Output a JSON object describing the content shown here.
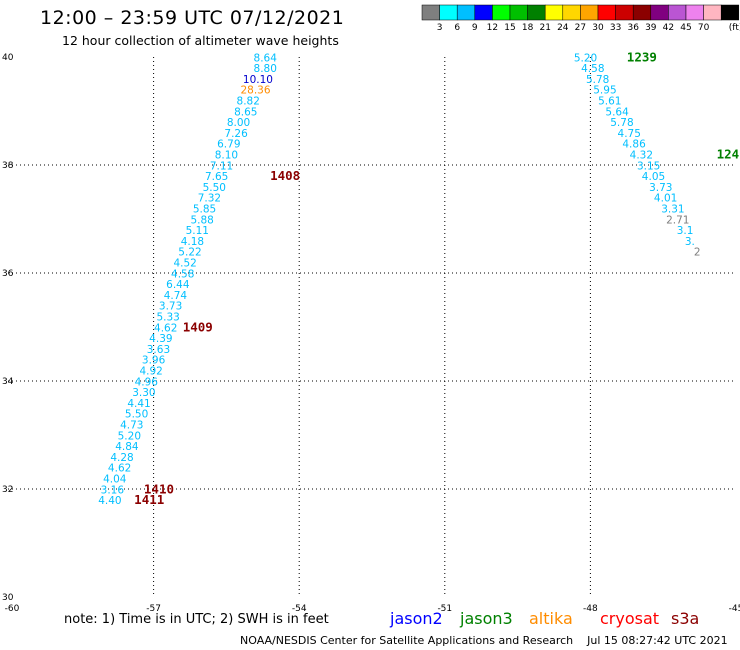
{
  "title": "12:00 – 23:59 UTC 07/12/2021",
  "subtitle": "12 hour collection of altimeter wave heights",
  "note": "note: 1) Time is in UTC; 2) SWH is in feet",
  "credit": "NOAA/NESDIS Center for Satellite Applications and Research",
  "timestamp": "Jul 15 08:27:42 UTC 2021",
  "satellites": [
    {
      "name": "jason2",
      "color": "#0000ff"
    },
    {
      "name": "jason3",
      "color": "#008000"
    },
    {
      "name": "altika",
      "color": "#ff8c00"
    },
    {
      "name": "cryosat",
      "color": "#ff0000"
    },
    {
      "name": "s3a",
      "color": "#8b0000"
    }
  ],
  "chart_data": {
    "type": "scatter",
    "xlim": [
      -60,
      -45
    ],
    "ylim": [
      30,
      40
    ],
    "x_ticks": [
      -60,
      -57,
      -54,
      -51,
      -48,
      -45
    ],
    "x_tick_labels": [
      "-60",
      "-57",
      "-54",
      "-51",
      "-48",
      "-45"
    ],
    "y_ticks": [
      30,
      32,
      34,
      36,
      38,
      40
    ],
    "y_tick_labels": [
      "30",
      "32",
      "34",
      "36",
      "38",
      "40"
    ],
    "grid": true,
    "colorbar": {
      "unit": "(ft)",
      "labels": [
        "3",
        "6",
        "9",
        "12",
        "15",
        "18",
        "21",
        "24",
        "27",
        "30",
        "33",
        "36",
        "39",
        "42",
        "45",
        "70"
      ],
      "colors": [
        "#7f7f7f",
        "#00ffff",
        "#00bfff",
        "#0000ff",
        "#00ff00",
        "#00c000",
        "#008000",
        "#ffff00",
        "#ffd700",
        "#ffa500",
        "#ff0000",
        "#cc0000",
        "#8b0000",
        "#800080",
        "#ba55d3",
        "#ee82ee",
        "#ffb6c1",
        "#000000"
      ]
    },
    "track_color_cyan": "#00bfff",
    "series": [
      {
        "name": "track-1",
        "points": [
          {
            "lon": -54.7,
            "lat": 39.92,
            "swh": "8.64",
            "color": "#00bfff"
          },
          {
            "lon": -54.7,
            "lat": 39.72,
            "swh": "8.80",
            "color": "#00bfff"
          },
          {
            "lon": -54.85,
            "lat": 39.52,
            "swh": "10.10",
            "color": "#0000cd"
          },
          {
            "lon": -54.9,
            "lat": 39.32,
            "swh": "28.36",
            "color": "#ff8c00"
          },
          {
            "lon": -55.05,
            "lat": 39.12,
            "swh": "8.82",
            "color": "#00bfff"
          },
          {
            "lon": -55.1,
            "lat": 38.92,
            "swh": "8.65",
            "color": "#00bfff"
          },
          {
            "lon": -55.25,
            "lat": 38.72,
            "swh": "8.00",
            "color": "#00bfff"
          },
          {
            "lon": -55.3,
            "lat": 38.52,
            "swh": "7.26",
            "color": "#00bfff"
          },
          {
            "lon": -55.45,
            "lat": 38.32,
            "swh": "6.79",
            "color": "#00bfff"
          },
          {
            "lon": -55.5,
            "lat": 38.12,
            "swh": "8.10",
            "color": "#00bfff"
          },
          {
            "lon": -55.6,
            "lat": 37.92,
            "swh": "7.11",
            "color": "#00bfff"
          },
          {
            "lon": -55.7,
            "lat": 37.72,
            "swh": "7.65",
            "color": "#00bfff"
          },
          {
            "lon": -55.75,
            "lat": 37.52,
            "swh": "5.50",
            "color": "#00bfff"
          },
          {
            "lon": -55.85,
            "lat": 37.32,
            "swh": "7.32",
            "color": "#00bfff"
          },
          {
            "lon": -55.95,
            "lat": 37.12,
            "swh": "5.85",
            "color": "#00bfff"
          },
          {
            "lon": -56.0,
            "lat": 36.92,
            "swh": "5.88",
            "color": "#00bfff"
          },
          {
            "lon": -56.1,
            "lat": 36.72,
            "swh": "5.11",
            "color": "#00bfff"
          },
          {
            "lon": -56.2,
            "lat": 36.52,
            "swh": "4.18",
            "color": "#00bfff"
          },
          {
            "lon": -56.25,
            "lat": 36.32,
            "swh": "5.22",
            "color": "#00bfff"
          },
          {
            "lon": -56.35,
            "lat": 36.12,
            "swh": "4.52",
            "color": "#00bfff"
          },
          {
            "lon": -56.4,
            "lat": 35.92,
            "swh": "4.58",
            "color": "#00bfff"
          },
          {
            "lon": -56.5,
            "lat": 35.72,
            "swh": "6.44",
            "color": "#00bfff"
          },
          {
            "lon": -56.55,
            "lat": 35.52,
            "swh": "4.74",
            "color": "#00bfff"
          },
          {
            "lon": -56.65,
            "lat": 35.32,
            "swh": "3.73",
            "color": "#00bfff"
          },
          {
            "lon": -56.7,
            "lat": 35.12,
            "swh": "5.33",
            "color": "#00bfff"
          },
          {
            "lon": -56.75,
            "lat": 34.92,
            "swh": "4.62",
            "color": "#00bfff"
          },
          {
            "lon": -56.85,
            "lat": 34.72,
            "swh": "4.39",
            "color": "#00bfff"
          },
          {
            "lon": -56.9,
            "lat": 34.52,
            "swh": "3.63",
            "color": "#00bfff"
          },
          {
            "lon": -57.0,
            "lat": 34.32,
            "swh": "3.96",
            "color": "#00bfff"
          },
          {
            "lon": -57.05,
            "lat": 34.12,
            "swh": "4.92",
            "color": "#00bfff"
          },
          {
            "lon": -57.15,
            "lat": 33.92,
            "swh": "4.96",
            "color": "#00bfff"
          },
          {
            "lon": -57.2,
            "lat": 33.72,
            "swh": "3.30",
            "color": "#00bfff"
          },
          {
            "lon": -57.3,
            "lat": 33.52,
            "swh": "4.41",
            "color": "#00bfff"
          },
          {
            "lon": -57.35,
            "lat": 33.32,
            "swh": "5.50",
            "color": "#00bfff"
          },
          {
            "lon": -57.45,
            "lat": 33.12,
            "swh": "4.73",
            "color": "#00bfff"
          },
          {
            "lon": -57.5,
            "lat": 32.92,
            "swh": "5.20",
            "color": "#00bfff"
          },
          {
            "lon": -57.55,
            "lat": 32.72,
            "swh": "4.84",
            "color": "#00bfff"
          },
          {
            "lon": -57.65,
            "lat": 32.52,
            "swh": "4.28",
            "color": "#00bfff"
          },
          {
            "lon": -57.7,
            "lat": 32.32,
            "swh": "4.62",
            "color": "#00bfff"
          },
          {
            "lon": -57.8,
            "lat": 32.12,
            "swh": "4.04",
            "color": "#00bfff"
          },
          {
            "lon": -57.85,
            "lat": 31.92,
            "swh": "3.16",
            "color": "#00bfff"
          },
          {
            "lon": -57.9,
            "lat": 31.72,
            "swh": "4.40",
            "color": "#00bfff"
          }
        ]
      },
      {
        "name": "track-2",
        "points": [
          {
            "lon": -48.1,
            "lat": 39.92,
            "swh": "5.20",
            "color": "#00bfff"
          },
          {
            "lon": -47.95,
            "lat": 39.72,
            "swh": "4.58",
            "color": "#00bfff"
          },
          {
            "lon": -47.85,
            "lat": 39.52,
            "swh": "5.78",
            "color": "#00bfff"
          },
          {
            "lon": -47.7,
            "lat": 39.32,
            "swh": "5.95",
            "color": "#00bfff"
          },
          {
            "lon": -47.6,
            "lat": 39.12,
            "swh": "5.61",
            "color": "#00bfff"
          },
          {
            "lon": -47.45,
            "lat": 38.92,
            "swh": "5.64",
            "color": "#00bfff"
          },
          {
            "lon": -47.35,
            "lat": 38.72,
            "swh": "5.78",
            "color": "#00bfff"
          },
          {
            "lon": -47.2,
            "lat": 38.52,
            "swh": "4.75",
            "color": "#00bfff"
          },
          {
            "lon": -47.1,
            "lat": 38.32,
            "swh": "4.86",
            "color": "#00bfff"
          },
          {
            "lon": -46.95,
            "lat": 38.12,
            "swh": "4.32",
            "color": "#00bfff"
          },
          {
            "lon": -46.8,
            "lat": 37.92,
            "swh": "3.15",
            "color": "#00bfff"
          },
          {
            "lon": -46.7,
            "lat": 37.72,
            "swh": "4.05",
            "color": "#00bfff"
          },
          {
            "lon": -46.55,
            "lat": 37.52,
            "swh": "3.73",
            "color": "#00bfff"
          },
          {
            "lon": -46.45,
            "lat": 37.32,
            "swh": "4.01",
            "color": "#00bfff"
          },
          {
            "lon": -46.3,
            "lat": 37.12,
            "swh": "3.31",
            "color": "#00bfff"
          },
          {
            "lon": -46.2,
            "lat": 36.92,
            "swh": "2.71",
            "color": "#7f7f7f"
          },
          {
            "lon": -46.05,
            "lat": 36.72,
            "swh": "3.1",
            "color": "#00bfff"
          },
          {
            "lon": -45.95,
            "lat": 36.52,
            "swh": "3.",
            "color": "#00bfff"
          },
          {
            "lon": -45.8,
            "lat": 36.32,
            "swh": "2",
            "color": "#7f7f7f"
          }
        ]
      }
    ],
    "time_markers": [
      {
        "label": "1408",
        "lon": -54.6,
        "lat": 37.72,
        "color": "#8b0000"
      },
      {
        "label": "1409",
        "lon": -56.4,
        "lat": 34.92,
        "color": "#8b0000"
      },
      {
        "label": "1410",
        "lon": -57.2,
        "lat": 31.92,
        "color": "#8b0000"
      },
      {
        "label": "1411",
        "lon": -57.4,
        "lat": 31.72,
        "color": "#8b0000"
      },
      {
        "label": "1239",
        "lon": -47.25,
        "lat": 39.92,
        "color": "#008000"
      },
      {
        "label": "124",
        "lon": -45.4,
        "lat": 38.12,
        "color": "#008000"
      }
    ]
  }
}
